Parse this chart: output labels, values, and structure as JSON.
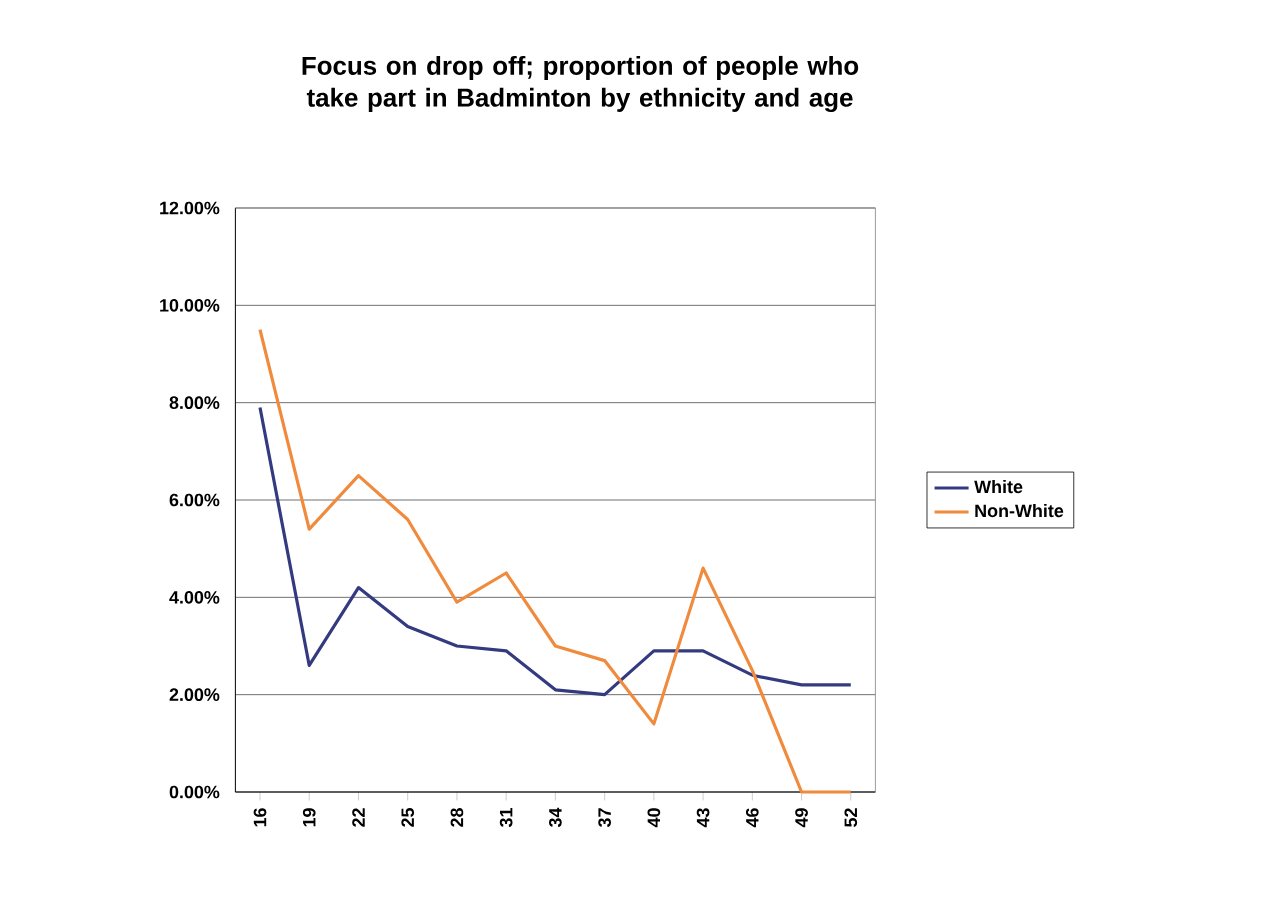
{
  "chart_data": {
    "type": "line",
    "title": "Focus on drop off; proportion of people who take part in Badminton by ethnicity and age",
    "categories": [
      "16",
      "19",
      "22",
      "25",
      "28",
      "31",
      "34",
      "37",
      "40",
      "43",
      "46",
      "49",
      "52"
    ],
    "series": [
      {
        "name": "White",
        "color": "#333a80",
        "values": [
          7.9,
          2.6,
          4.2,
          3.4,
          3.0,
          2.9,
          2.1,
          2.0,
          2.9,
          2.9,
          2.4,
          2.2,
          2.2
        ]
      },
      {
        "name": "Non-White",
        "color": "#f08a3c",
        "values": [
          9.5,
          5.4,
          6.5,
          5.6,
          3.9,
          4.5,
          3.0,
          2.7,
          1.4,
          4.6,
          2.5,
          0,
          0
        ]
      }
    ],
    "ylim": [
      0,
      12
    ],
    "yticks": [
      {
        "value": 0,
        "label": "0.00%"
      },
      {
        "value": 2,
        "label": "2.00%"
      },
      {
        "value": 4,
        "label": "4.00%"
      },
      {
        "value": 6,
        "label": "6.00%"
      },
      {
        "value": 8,
        "label": "8.00%"
      },
      {
        "value": 10,
        "label": "10.00%"
      },
      {
        "value": 12,
        "label": "12.00%"
      }
    ],
    "grid": "y",
    "legend": "right",
    "marker": "none",
    "line_style": "solid"
  }
}
